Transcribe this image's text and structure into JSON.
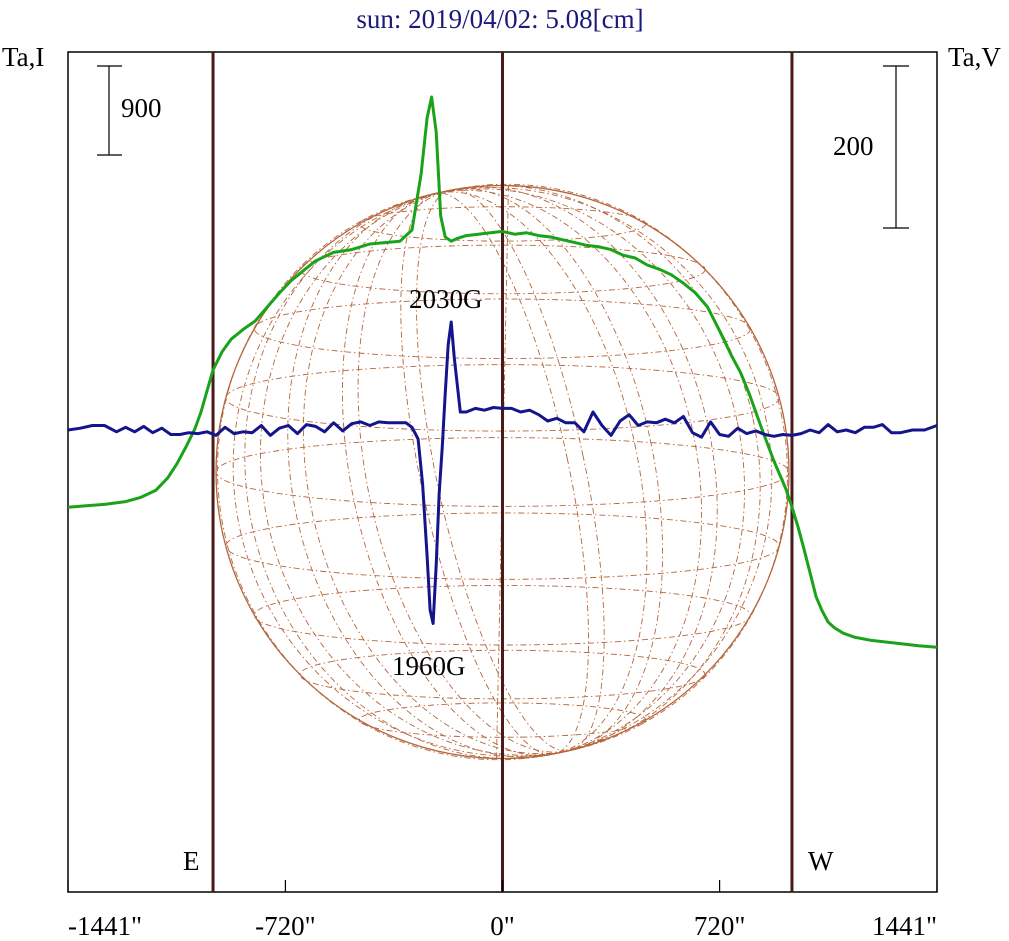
{
  "chart_data": {
    "type": "line",
    "title": "sun: 2019/04/02: 5.08[cm]",
    "left_axis_label": "Ta,I",
    "right_axis_label": "Ta,V",
    "left_scale_bar": "900",
    "right_scale_bar": "200",
    "x_ticks": [
      {
        "label": "-1441\"",
        "value": -1441
      },
      {
        "label": "-720\"",
        "value": -720
      },
      {
        "label": "0\"",
        "value": 0
      },
      {
        "label": "720\"",
        "value": 720
      },
      {
        "label": "1441\"",
        "value": 1441
      }
    ],
    "xlim": [
      -1441,
      1441
    ],
    "limb_lines": [
      -960,
      0,
      960
    ],
    "limb_labels": {
      "east": "E",
      "west": "W"
    },
    "annotations": [
      {
        "text": "2030G",
        "x": -180
      },
      {
        "text": "1960G",
        "x": -230
      }
    ],
    "series": [
      {
        "color": "#1aa31a",
        "x": [
          -1441,
          -1380,
          -1320,
          -1250,
          -1200,
          -1150,
          -1110,
          -1080,
          -1050,
          -1020,
          -1000,
          -980,
          -960,
          -930,
          -900,
          -860,
          -820,
          -780,
          -740,
          -700,
          -660,
          -620,
          -560,
          -500,
          -440,
          -390,
          -340,
          -300,
          -270,
          -250,
          -235,
          -220,
          -205,
          -190,
          -170,
          -150,
          -120,
          -80,
          -40,
          0,
          40,
          80,
          120,
          160,
          200,
          240,
          280,
          320,
          360,
          400,
          440,
          480,
          520,
          560,
          600,
          640,
          680,
          720,
          760,
          790,
          820,
          860,
          900,
          940,
          960,
          980,
          1000,
          1020,
          1040,
          1060,
          1080,
          1100,
          1130,
          1170,
          1220,
          1300,
          1380,
          1441
        ],
        "values": [
          0.02,
          0.03,
          0.04,
          0.06,
          0.09,
          0.14,
          0.23,
          0.33,
          0.45,
          0.58,
          0.7,
          0.85,
          1.0,
          1.13,
          1.22,
          1.29,
          1.35,
          1.45,
          1.55,
          1.64,
          1.71,
          1.78,
          1.84,
          1.86,
          1.9,
          1.91,
          1.92,
          2.0,
          2.4,
          2.8,
          2.95,
          2.7,
          2.1,
          1.95,
          1.92,
          1.94,
          1.96,
          1.97,
          1.98,
          1.99,
          1.97,
          1.98,
          1.96,
          1.95,
          1.93,
          1.91,
          1.89,
          1.88,
          1.86,
          1.82,
          1.8,
          1.75,
          1.72,
          1.68,
          1.62,
          1.55,
          1.45,
          1.28,
          1.1,
          0.98,
          0.82,
          0.58,
          0.35,
          0.15,
          0.02,
          -0.12,
          -0.28,
          -0.45,
          -0.62,
          -0.72,
          -0.8,
          -0.84,
          -0.88,
          -0.91,
          -0.93,
          -0.95,
          -0.97,
          -0.98
        ]
      },
      {
        "color": "#14148c",
        "x": [
          -1441,
          -1400,
          -1360,
          -1320,
          -1280,
          -1250,
          -1220,
          -1190,
          -1160,
          -1130,
          -1100,
          -1070,
          -1040,
          -1010,
          -980,
          -950,
          -920,
          -890,
          -860,
          -830,
          -800,
          -770,
          -740,
          -710,
          -680,
          -650,
          -620,
          -590,
          -560,
          -530,
          -500,
          -470,
          -440,
          -410,
          -380,
          -350,
          -320,
          -300,
          -280,
          -265,
          -250,
          -240,
          -230,
          -220,
          -210,
          -200,
          -190,
          -180,
          -170,
          -160,
          -150,
          -140,
          -120,
          -90,
          -60,
          -30,
          0,
          30,
          60,
          90,
          120,
          150,
          180,
          210,
          240,
          270,
          300,
          330,
          360,
          390,
          420,
          450,
          480,
          510,
          540,
          570,
          600,
          630,
          660,
          690,
          720,
          750,
          780,
          810,
          840,
          870,
          900,
          930,
          960,
          990,
          1020,
          1050,
          1080,
          1110,
          1140,
          1170,
          1200,
          1230,
          1260,
          1290,
          1320,
          1360,
          1400,
          1441
        ],
        "values": [
          0,
          2,
          5,
          5,
          -2,
          3,
          -2,
          4,
          -3,
          2,
          -5,
          -5,
          -3,
          -4,
          -2,
          -6,
          3,
          -4,
          -2,
          -3,
          5,
          -6,
          2,
          5,
          -4,
          6,
          4,
          -2,
          8,
          -1,
          7,
          9,
          5,
          9,
          8,
          8,
          8,
          3,
          -10,
          -60,
          -140,
          -200,
          -215,
          -150,
          -70,
          -20,
          40,
          95,
          120,
          80,
          50,
          20,
          20,
          24,
          22,
          25,
          24,
          24,
          20,
          22,
          17,
          10,
          13,
          8,
          8,
          -2,
          20,
          5,
          -6,
          10,
          17,
          5,
          9,
          8,
          12,
          8,
          15,
          -3,
          -8,
          9,
          -5,
          -7,
          2,
          -4,
          -1,
          -5,
          -7,
          -5,
          -6,
          -4,
          0,
          -3,
          6,
          -2,
          0,
          -3,
          3,
          3,
          6,
          -3,
          -3,
          0,
          0,
          5
        ]
      }
    ],
    "colors": {
      "stokes_i": "#1aa31a",
      "stokes_v": "#14148c",
      "limb_lines": "#4a1a1a",
      "solar_disk": "#b5653a",
      "title": "#1a1a7a"
    }
  }
}
